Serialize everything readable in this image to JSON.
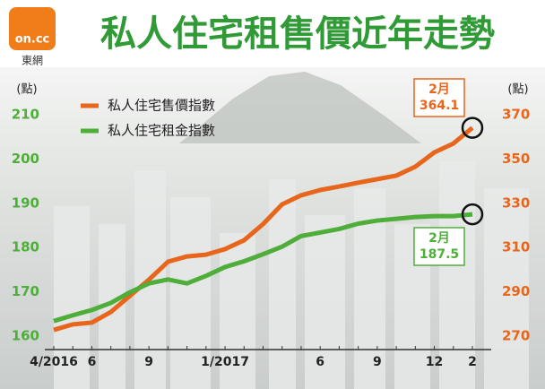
{
  "chart_data": {
    "type": "line",
    "title": "私人住宅租售價近年走勢",
    "source_logo": "on.cc",
    "source_name": "東網",
    "y_label": "(點)",
    "y2_label": "(點)",
    "categories": [
      "4/2016",
      null,
      "6",
      null,
      null,
      "9",
      null,
      null,
      null,
      "1/2017",
      null,
      null,
      null,
      null,
      "6",
      null,
      null,
      "9",
      null,
      null,
      "12",
      null,
      "2"
    ],
    "series": [
      {
        "name": "私人住宅售價指數",
        "color": "#e8651c",
        "axis": "y2",
        "values": [
          272.8,
          275.3,
          276.1,
          280.9,
          288.2,
          295.5,
          303.6,
          306.0,
          306.8,
          309.3,
          313.3,
          320.6,
          329.5,
          333.6,
          336.0,
          337.6,
          339.3,
          340.9,
          342.5,
          346.5,
          353.0,
          357.0,
          364.1
        ]
      },
      {
        "name": "私人住宅租金指數",
        "color": "#4fae3a",
        "axis": "y",
        "values": [
          163.4,
          164.7,
          165.9,
          167.5,
          169.9,
          171.9,
          172.8,
          171.9,
          173.6,
          175.6,
          176.9,
          178.5,
          180.2,
          182.6,
          183.4,
          184.2,
          185.4,
          186.1,
          186.5,
          186.9,
          187.1,
          187.1,
          187.5
        ]
      }
    ],
    "annotations": [
      {
        "text": "2月"
      },
      {
        "text": "2月"
      }
    ],
    "ylim": [
      160,
      210
    ],
    "yticks": [
      160,
      170,
      180,
      190,
      200,
      210
    ],
    "y2lim": [
      270,
      370
    ],
    "y2ticks": [
      270,
      290,
      310,
      330,
      350,
      370
    ]
  }
}
